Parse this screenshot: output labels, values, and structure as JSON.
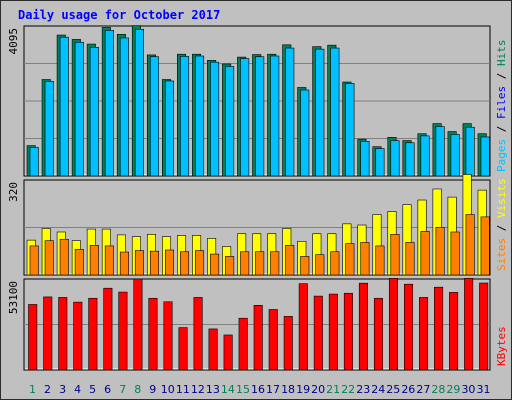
{
  "chart_data": {
    "type": "bar",
    "title": "Daily usage for October 2017",
    "categories": [
      "1",
      "2",
      "3",
      "4",
      "5",
      "6",
      "7",
      "8",
      "9",
      "10",
      "11",
      "12",
      "13",
      "14",
      "15",
      "16",
      "17",
      "18",
      "19",
      "20",
      "21",
      "22",
      "23",
      "24",
      "25",
      "26",
      "27",
      "28",
      "29",
      "30",
      "31"
    ],
    "weekend_days": [
      1,
      7,
      8,
      14,
      15,
      21,
      22,
      28,
      29
    ],
    "panels": [
      {
        "name": "hits-files-pages",
        "ymax_label": "4095",
        "ymax": 4095,
        "legend": [
          {
            "text": "Pages",
            "color": "#00c0ff"
          },
          {
            "text": " / ",
            "color": "#000000"
          },
          {
            "text": "Files",
            "color": "#0000ff"
          },
          {
            "text": " / ",
            "color": "#000000"
          },
          {
            "text": "Hits",
            "color": "#00805c"
          }
        ],
        "series": [
          {
            "name": "Hits",
            "color": "#00805c",
            "values": [
              840,
              2670,
              3900,
              3780,
              3650,
              4110,
              3920,
              4160,
              3350,
              2670,
              3370,
              3370,
              3200,
              3100,
              3290,
              3360,
              3370,
              3630,
              2450,
              3580,
              3620,
              2600,
              1020,
              810,
              1070,
              980,
              1170,
              1450,
              1230,
              1450,
              1170
            ]
          },
          {
            "name": "Pages",
            "color": "#00c0ff",
            "values": [
              790,
              2620,
              3840,
              3700,
              3560,
              4030,
              3820,
              4060,
              3300,
              2630,
              3310,
              3320,
              3150,
              3030,
              3250,
              3300,
              3320,
              3540,
              2380,
              3510,
              3540,
              2560,
              960,
              760,
              980,
              920,
              1110,
              1370,
              1150,
              1350,
              1080
            ]
          }
        ]
      },
      {
        "name": "visits-sites",
        "ymax_label": "320",
        "ymax": 320,
        "legend": [
          {
            "text": "Sites",
            "color": "#ff8000"
          },
          {
            "text": " / ",
            "color": "#000000"
          },
          {
            "text": "Visits",
            "color": "#ffff00"
          }
        ],
        "series": [
          {
            "name": "Visits",
            "color": "#ffff00",
            "values": [
              120,
              160,
              148,
              118,
              158,
              158,
              138,
              132,
              140,
              132,
              136,
              136,
              126,
              98,
              142,
              142,
              142,
              160,
              116,
              142,
              142,
              176,
              172,
              208,
              218,
              242,
              258,
              296,
              268,
              346,
              292
            ]
          },
          {
            "name": "Sites",
            "color": "#ff8000",
            "values": [
              100,
              118,
              123,
              88,
              102,
              100,
              79,
              84,
              82,
              86,
              80,
              84,
              72,
              64,
              80,
              80,
              80,
              102,
              64,
              70,
              80,
              108,
              112,
              100,
              140,
              112,
              150,
              164,
              148,
              208,
              200
            ]
          }
        ]
      },
      {
        "name": "kbytes",
        "ymax_label": "53100",
        "ymax": 53100,
        "legend": [
          {
            "text": "KBytes",
            "color": "#ff0000"
          }
        ],
        "series": [
          {
            "name": "KBytes",
            "color": "#ff0000",
            "values": [
              39100,
              43600,
              43300,
              40500,
              42800,
              48800,
              46500,
              54300,
              42800,
              40700,
              25300,
              43300,
              24500,
              20900,
              30900,
              38600,
              36100,
              32000,
              51500,
              44100,
              45300,
              45800,
              51800,
              42800,
              54700,
              51200,
              43300,
              49400,
              46300,
              54700,
              51900
            ]
          }
        ]
      }
    ]
  },
  "colors": {
    "background": "#c0c0c0",
    "plot_background": "#c0c0c0",
    "title": "#0000ff",
    "gridline": "#808080",
    "weekday_label": "#00008b",
    "weekend_label": "#00805c",
    "border": "#2b2b2b"
  }
}
